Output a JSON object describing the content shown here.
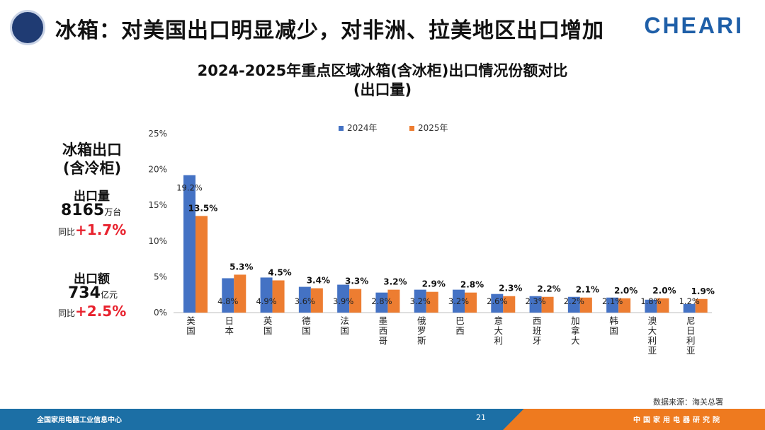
{
  "header": {
    "title": "冰箱：对美国出口明显减少，对非洲、拉美地区出口增加",
    "brand": "CHEARI"
  },
  "chart_title_line1": "2024-2025年重点区域冰箱(含冰柜)出口情况份额对比",
  "chart_title_line2": "(出口量)",
  "side_panel": {
    "heading_line1": "冰箱出口",
    "heading_line2": "(含冷柜)",
    "volume_label": "出口量",
    "volume_value": "8165",
    "volume_unit": "万台",
    "volume_yoy_label": "同比",
    "volume_yoy_value": "+1.7%",
    "amount_label": "出口额",
    "amount_value": "734",
    "amount_unit": "亿元",
    "amount_yoy_label": "同比",
    "amount_yoy_value": "+2.5%"
  },
  "source": "数据来源：海关总署",
  "footer": {
    "left": "全国家用电器工业信息中心",
    "page": "21",
    "right": "中国家用电器研究院"
  },
  "colors": {
    "series_2024": "#4472c4",
    "series_2025": "#ed7d31"
  },
  "chart_data": {
    "type": "bar",
    "categories": [
      "美国",
      "日本",
      "英国",
      "德国",
      "法国",
      "墨西哥",
      "俄罗斯",
      "巴西",
      "意大利",
      "西班牙",
      "加拿大",
      "韩国",
      "澳大利亚",
      "尼日利亚"
    ],
    "series": [
      {
        "name": "2024年",
        "values": [
          19.2,
          4.8,
          4.9,
          3.6,
          3.9,
          2.8,
          3.2,
          3.2,
          2.6,
          2.3,
          2.2,
          2.1,
          1.8,
          1.2
        ]
      },
      {
        "name": "2025年",
        "values": [
          13.5,
          5.3,
          4.5,
          3.4,
          3.3,
          3.2,
          2.9,
          2.8,
          2.3,
          2.2,
          2.1,
          2.0,
          2.0,
          1.9
        ]
      }
    ],
    "ylim": [
      0,
      25
    ],
    "yticks": [
      "0%",
      "5%",
      "10%",
      "15%",
      "20%",
      "25%"
    ],
    "value_suffix": "%",
    "legend_position": "top"
  }
}
